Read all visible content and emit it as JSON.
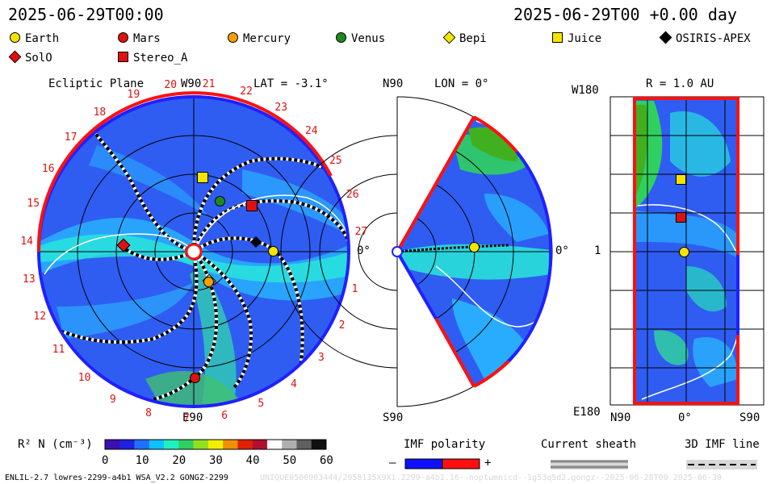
{
  "header": {
    "datetime_left": "2025-06-29T00:00",
    "datetime_right": "2025-06-29T00 +0.00 day"
  },
  "legend": {
    "items": [
      {
        "label": "Earth",
        "shape": "circle",
        "color": "#f5e400"
      },
      {
        "label": "Mars",
        "shape": "circle",
        "color": "#e01010"
      },
      {
        "label": "Mercury",
        "shape": "circle",
        "color": "#f5a000"
      },
      {
        "label": "Venus",
        "shape": "circle",
        "color": "#1f8a1f"
      },
      {
        "label": "Bepi",
        "shape": "diamond",
        "color": "#f5e400"
      },
      {
        "label": "Juice",
        "shape": "square",
        "color": "#f5e400"
      },
      {
        "label": "OSIRIS-APEX",
        "shape": "diamond",
        "color": "#000000"
      },
      {
        "label": "SolO",
        "shape": "diamond",
        "color": "#e01010"
      },
      {
        "label": "Stereo_A",
        "shape": "square",
        "color": "#e01010"
      }
    ]
  },
  "ecliptic": {
    "title": "Ecliptic Plane",
    "top_label": "W90",
    "lat_label": "LAT = -3.1°",
    "bottom_label": "E90",
    "right_label": "0°",
    "longitude_numbers": [
      "1",
      "2",
      "3",
      "4",
      "5",
      "6",
      "7",
      "8",
      "9",
      "10",
      "11",
      "12",
      "13",
      "14",
      "15",
      "16",
      "17",
      "18",
      "19",
      "20",
      "21",
      "22",
      "23",
      "24",
      "25",
      "26",
      "27"
    ]
  },
  "meridional": {
    "top_label": "N90",
    "lon_label": "LON = 0°",
    "bottom_label": "S90",
    "right_label": "0°"
  },
  "radial": {
    "title": "R = 1.0 AU",
    "top_left": "W180",
    "mid_left": "1",
    "bottom_left": "E180",
    "x_left": "N90",
    "x_mid": "0°",
    "x_right": "S90"
  },
  "colorbar": {
    "label": "R² N (cm⁻³)",
    "ticks": [
      "0",
      "10",
      "20",
      "30",
      "40",
      "50",
      "60"
    ],
    "colors": [
      "#3a10b0",
      "#2020e0",
      "#2070ff",
      "#10c0ff",
      "#20f0c0",
      "#30d060",
      "#90e020",
      "#f0f000",
      "#f09000",
      "#e02000",
      "#b01030",
      "#ffffff",
      "#b0b0b0",
      "#606060",
      "#101010"
    ]
  },
  "imf": {
    "title": "IMF polarity",
    "minus": "–",
    "plus": "+"
  },
  "sheath": {
    "title": "Current sheath"
  },
  "imf3d": {
    "title": "3D IMF line"
  },
  "footer": {
    "left": "ENLIL-2.7 lowres-2299-a4b1 WSA_V2.2 GONGZ-2299",
    "right": "UNIQUE0500003444/2058135X9Xi.2299-a4b1.16--noptumnicd--1g53q5d2.gongz--2025-06-28T00 2025-06-30"
  }
}
